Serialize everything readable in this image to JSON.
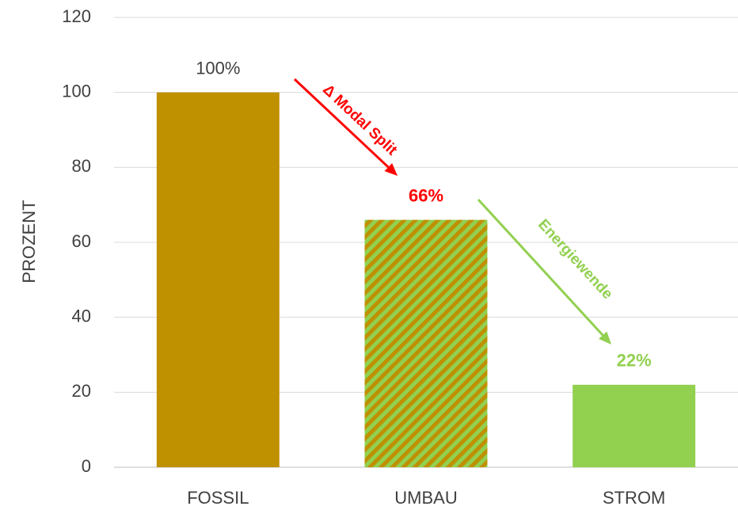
{
  "chart_data": {
    "type": "bar",
    "categories": [
      "FOSSIL",
      "UMBAU",
      "STROM"
    ],
    "values": [
      100,
      66,
      22
    ],
    "value_labels": [
      "100%",
      "66%",
      "22%"
    ],
    "colors": [
      "#bf9000",
      "#92d050",
      "#92d050"
    ],
    "hatch": [
      false,
      true,
      false
    ],
    "hatch_color": "#bf9000",
    "value_label_colors": [
      "#404040",
      "#ff0000",
      "#92d050"
    ],
    "value_label_bold": [
      false,
      true,
      true
    ],
    "ylabel": "PROZENT",
    "ylim": [
      0,
      120
    ],
    "yticks": [
      0,
      20,
      40,
      60,
      80,
      100,
      120
    ],
    "grid": true,
    "annotations": [
      {
        "text": "Δ Modal Split",
        "color": "#ff0000"
      },
      {
        "text": "Energiewende",
        "color": "#92d050"
      }
    ]
  }
}
